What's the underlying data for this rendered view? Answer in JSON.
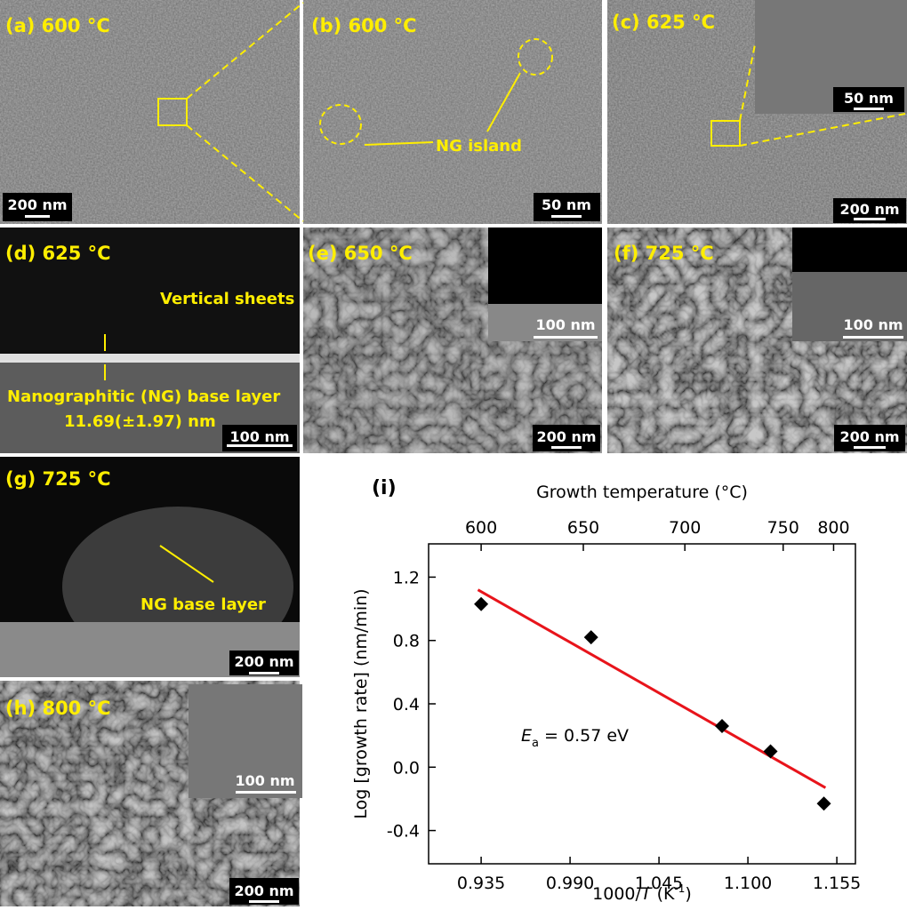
{
  "panels": [
    {
      "label": "(a) 600 °C",
      "scale_bar": "200 nm"
    },
    {
      "label": "(b) 600 °C",
      "scale_bar": "50 nm",
      "annotations": [
        "NG island"
      ]
    },
    {
      "label": "(c) 625 °C",
      "scale_bar": "200 nm",
      "inset_scale_bar": "50 nm"
    },
    {
      "label": "(d) 625 °C",
      "scale_bar": "100 nm",
      "annotations": [
        "Vertical sheets",
        "Nanographitic (NG) base layer",
        "11.69(±1.97) nm"
      ]
    },
    {
      "label": "(e) 650 °C",
      "scale_bar": "200 nm",
      "inset_scale_bar": "100 nm"
    },
    {
      "label": "(f) 725 °C",
      "scale_bar": "200 nm",
      "inset_scale_bar": "100 nm"
    },
    {
      "label": "(g) 725 °C",
      "scale_bar": "200 nm",
      "annotations": [
        "NG base layer"
      ]
    },
    {
      "label": "(h) 800 °C",
      "scale_bar": "200 nm",
      "inset_scale_bar": "100 nm"
    }
  ],
  "chart_data": {
    "type": "scatter",
    "panel_label": "(i)",
    "x2_label": "Growth temperature (°C)",
    "x_label": {
      "pre": "1000/",
      "italic": "T",
      "unit": " (K",
      "sup": "-1",
      "post": ")"
    },
    "y_label": "Log [growth rate] (nm/min)",
    "annotation": {
      "italic": "E",
      "sub": "a",
      "rest": " = 0.57 eV"
    },
    "xlim": [
      0.9025,
      1.1665
    ],
    "ylim": [
      -0.61,
      1.41
    ],
    "xticks": [
      0.935,
      {
        "value": 0.99,
        "label": "0.990"
      },
      1.045,
      {
        "value": 1.1,
        "label": "1.100"
      },
      1.155
    ],
    "yticks": [
      -0.4,
      {
        "value": 0,
        "label": "0.0"
      },
      0.4,
      0.8,
      1.2
    ],
    "x2ticks": [
      {
        "value": 0.935,
        "label": "600"
      },
      {
        "value": 0.9982,
        "label": "650"
      },
      {
        "value": 1.061,
        "label": "700"
      },
      {
        "value": 1.1218,
        "label": "750"
      },
      {
        "value": 1.153,
        "label": "800"
      }
    ],
    "series": [
      {
        "color": "#000000",
        "x": [
          0.935,
          1.003,
          1.084,
          1.114,
          1.147
        ],
        "values": [
          1.03,
          0.82,
          0.26,
          0.1,
          -0.23
        ]
      }
    ],
    "fit": {
      "color": "#e8141b",
      "x": [
        0.933,
        1.148
      ],
      "values": [
        1.12,
        -0.13
      ]
    }
  }
}
